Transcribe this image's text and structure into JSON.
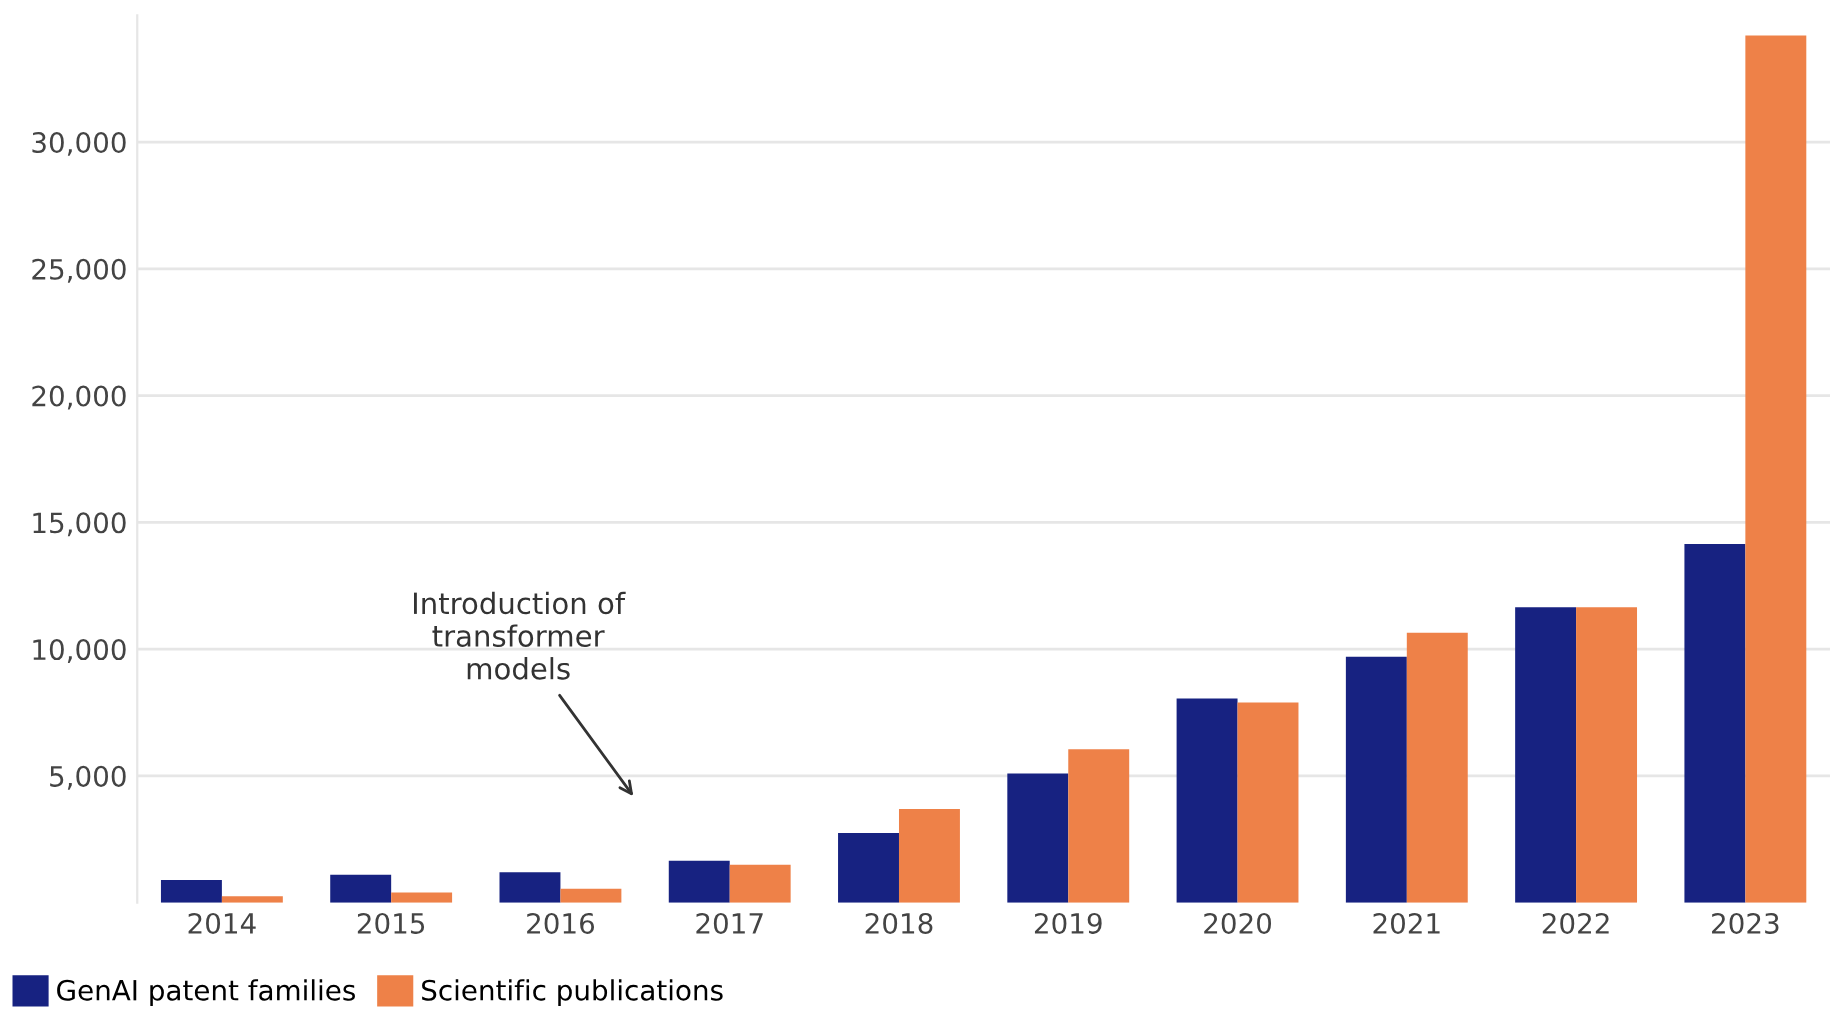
{
  "chart_data": {
    "type": "bar",
    "categories": [
      "2014",
      "2015",
      "2016",
      "2017",
      "2018",
      "2019",
      "2020",
      "2021",
      "2022",
      "2023"
    ],
    "series": [
      {
        "name": "GenAI patent families",
        "color": "#172281",
        "values": [
          900,
          1100,
          1200,
          1650,
          2750,
          5100,
          8050,
          9700,
          11650,
          14150
        ]
      },
      {
        "name": "Scientific publications",
        "color": "#ee8148",
        "values": [
          250,
          400,
          550,
          1500,
          3700,
          6050,
          7900,
          10650,
          11650,
          34200
        ]
      }
    ],
    "ylim": [
      0,
      35000
    ],
    "yticks": [
      {
        "value": 5000,
        "label": "5,000"
      },
      {
        "value": 10000,
        "label": "10,000"
      },
      {
        "value": 15000,
        "label": "15,000"
      },
      {
        "value": 20000,
        "label": "20,000"
      },
      {
        "value": 25000,
        "label": "25,000"
      },
      {
        "value": 30000,
        "label": "30,000"
      }
    ],
    "grid": "y",
    "legend": "bottom left",
    "annotations": [
      "Introduction of\ntransformer\nmodels"
    ]
  }
}
